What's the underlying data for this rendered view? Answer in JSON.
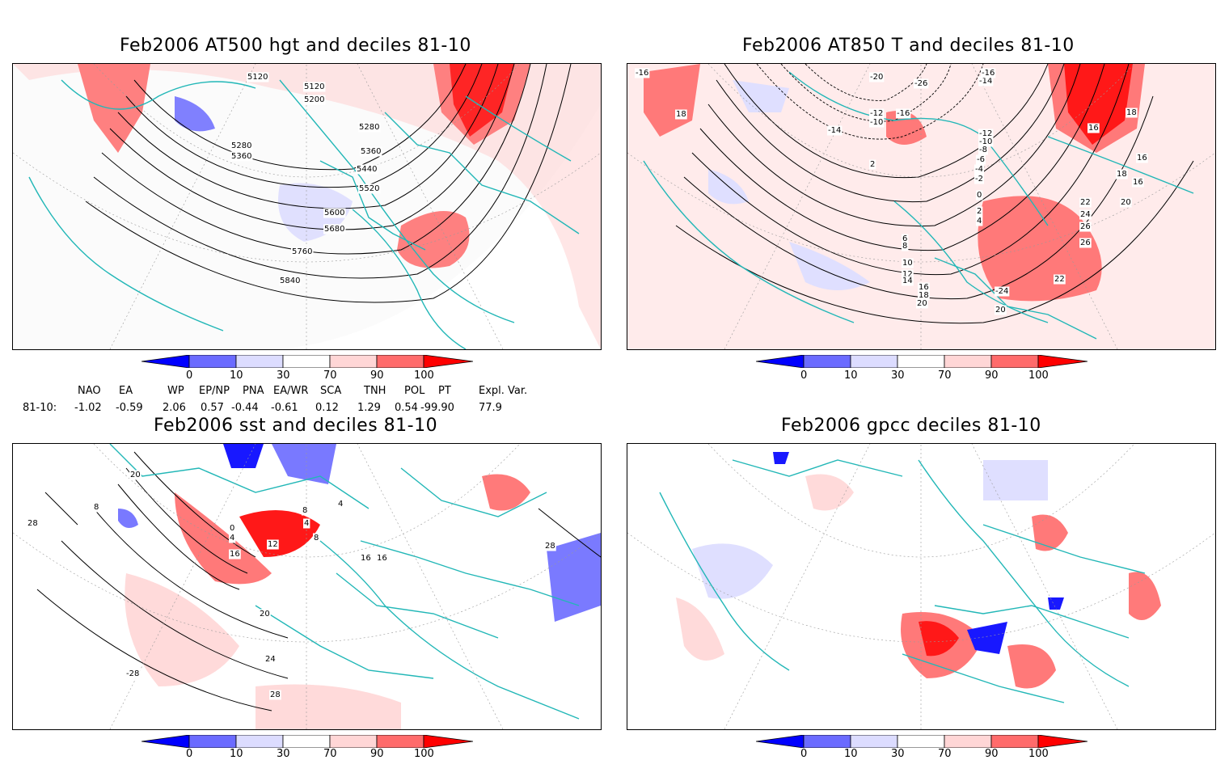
{
  "panels": [
    {
      "title": "Feb2006 AT500 hgt and deciles 81-10",
      "contour_labels": [
        "5120",
        "5120",
        "5200",
        "5280",
        "5280",
        "5360",
        "5360",
        "5440",
        "5520",
        "5600",
        "5680",
        "5760",
        "5840"
      ]
    },
    {
      "title": "Feb2006 AT850 T and deciles 81-10",
      "contour_labels": [
        "-16",
        "-20",
        "-26",
        "-14",
        "-12",
        "-10",
        "-14",
        "-16",
        "18",
        "16",
        "18",
        "16",
        "18",
        "16",
        "-12",
        "-10",
        "-8",
        "-6",
        "-4",
        "-2",
        "0",
        "2",
        "4",
        "6",
        "8",
        "10",
        "12",
        "14",
        "16",
        "18",
        "20",
        "22",
        "24",
        "26",
        "26",
        "-24",
        "20",
        "20",
        "22",
        "-16",
        "2"
      ]
    },
    {
      "title": "Feb2006 sst and deciles 81-10",
      "contour_labels": [
        "28",
        "20",
        "0",
        "4",
        "12",
        "16",
        "4",
        "8",
        "8",
        "4",
        "16",
        "16",
        "20",
        "24",
        "28",
        "28",
        "-28",
        "8"
      ]
    },
    {
      "title": "Feb2006 gpcc deciles 81-10",
      "contour_labels": []
    }
  ],
  "colorbar": {
    "ticks": [
      "0",
      "10",
      "30",
      "70",
      "90",
      "100"
    ],
    "colors": [
      "#0000ff",
      "#6b6bff",
      "#dcdcff",
      "#ffffff",
      "#ffd6d6",
      "#ff6b6b",
      "#ff0000"
    ]
  },
  "indices": {
    "headers": [
      "NAO",
      "EA",
      "WP",
      "EP/NP",
      "PNA",
      "EA/WR",
      "SCA",
      "TNH",
      "POL",
      "PT",
      "Expl. Var."
    ],
    "row_label": "81-10:",
    "values": [
      "-1.02",
      "-0.59",
      "2.06",
      "0.57",
      "-0.44",
      "-0.61",
      "0.12",
      "1.29",
      "0.54",
      "-99.90",
      "77.9"
    ]
  }
}
